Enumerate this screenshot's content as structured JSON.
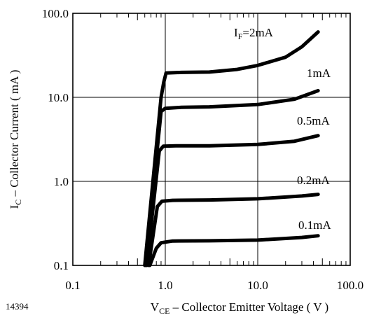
{
  "figure_id": "14394",
  "chart_data": {
    "type": "line",
    "x_scale": "log",
    "y_scale": "log",
    "xlim": [
      0.1,
      100.0
    ],
    "ylim": [
      0.1,
      100.0
    ],
    "grid": true,
    "x_ticks": [
      {
        "value": 0.1,
        "label": "0.1"
      },
      {
        "value": 1.0,
        "label": "1.0"
      },
      {
        "value": 10.0,
        "label": "10.0"
      },
      {
        "value": 100.0,
        "label": "100.0"
      }
    ],
    "y_ticks": [
      {
        "value": 0.1,
        "label": "0.1"
      },
      {
        "value": 1.0,
        "label": "1.0"
      },
      {
        "value": 10.0,
        "label": "10.0"
      },
      {
        "value": 100.0,
        "label": "100.0"
      }
    ],
    "xlabel": {
      "main": "V",
      "sub": "CE",
      "rest": " – Collector Emitter Voltage ( V )"
    },
    "ylabel": {
      "main": "I",
      "sub": "C",
      "rest": " – Collector Current ( mA )"
    },
    "series": [
      {
        "name": "0.1mA",
        "label_parts": {
          "pre": "",
          "sub": "",
          "post": "0.1mA"
        },
        "points": [
          [
            0.68,
            0.1
          ],
          [
            0.8,
            0.16
          ],
          [
            0.9,
            0.186
          ],
          [
            1.2,
            0.195
          ],
          [
            3.0,
            0.196
          ],
          [
            10.0,
            0.2
          ],
          [
            30.0,
            0.215
          ],
          [
            45.0,
            0.225
          ]
        ]
      },
      {
        "name": "0.2mA",
        "label_parts": {
          "pre": "",
          "sub": "",
          "post": "0.2mA"
        },
        "points": [
          [
            0.66,
            0.1
          ],
          [
            0.82,
            0.5
          ],
          [
            0.92,
            0.58
          ],
          [
            1.2,
            0.595
          ],
          [
            3.0,
            0.6
          ],
          [
            10.0,
            0.62
          ],
          [
            30.0,
            0.67
          ],
          [
            45.0,
            0.7
          ]
        ]
      },
      {
        "name": "0.5mA",
        "label_parts": {
          "pre": "",
          "sub": "",
          "post": "0.5mA"
        },
        "points": [
          [
            0.63,
            0.1
          ],
          [
            0.86,
            2.3
          ],
          [
            0.95,
            2.62
          ],
          [
            1.3,
            2.65
          ],
          [
            3.0,
            2.65
          ],
          [
            10.0,
            2.75
          ],
          [
            25.0,
            3.0
          ],
          [
            45.0,
            3.5
          ]
        ]
      },
      {
        "name": "1mA",
        "label_parts": {
          "pre": "",
          "sub": "",
          "post": "1mA"
        },
        "points": [
          [
            0.61,
            0.1
          ],
          [
            0.9,
            6.8
          ],
          [
            1.0,
            7.4
          ],
          [
            1.5,
            7.6
          ],
          [
            3.0,
            7.7
          ],
          [
            10.0,
            8.2
          ],
          [
            25.0,
            9.5
          ],
          [
            45.0,
            12.0
          ]
        ]
      },
      {
        "name": "IF=2mA",
        "label_parts": {
          "pre": "I",
          "sub": "F",
          "post": "=2mA"
        },
        "points": [
          [
            0.6,
            0.1
          ],
          [
            0.9,
            10.0
          ],
          [
            0.96,
            15.0
          ],
          [
            1.02,
            19.5
          ],
          [
            1.5,
            19.8
          ],
          [
            3.0,
            20.0
          ],
          [
            6.0,
            21.5
          ],
          [
            10.0,
            24.0
          ],
          [
            20.0,
            30.0
          ],
          [
            30.0,
            40.0
          ],
          [
            45.0,
            60.0
          ]
        ]
      }
    ]
  }
}
